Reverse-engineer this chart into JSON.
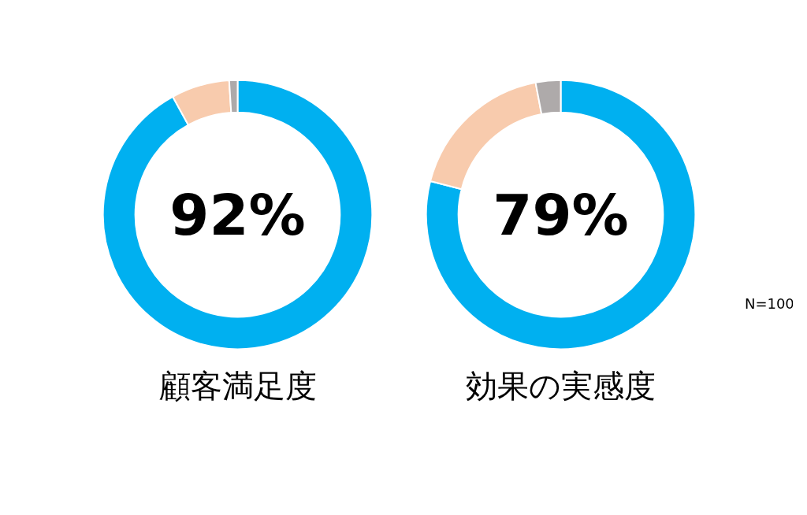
{
  "chart_data": [
    {
      "type": "donut",
      "title": "顧客満足度",
      "categories": [
        null,
        null,
        null
      ],
      "values": [
        92,
        7,
        1
      ],
      "colors": [
        "#00b0f0",
        "#f8cbad",
        "#aeaaaa"
      ],
      "annotations": [
        "92%"
      ]
    },
    {
      "type": "donut",
      "title": "効果の実感度",
      "categories": [
        null,
        null,
        null
      ],
      "values": [
        79,
        18,
        3
      ],
      "colors": [
        "#00b0f0",
        "#f8cbad",
        "#aeaaaa"
      ],
      "annotations": [
        "79%",
        "N=100"
      ]
    }
  ]
}
